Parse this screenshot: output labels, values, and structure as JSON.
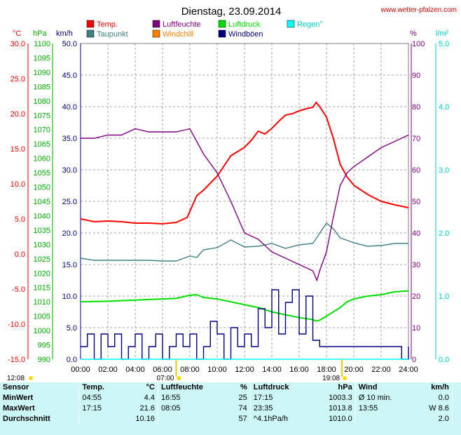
{
  "header": {
    "title": "Dienstag, 23.09.2014",
    "site": "www.wetter-pfalzen.com"
  },
  "units": {
    "c": "°C",
    "hpa": "hPa",
    "kmh": "km/h",
    "pct": "%",
    "lm2": "l/m²"
  },
  "legend": [
    {
      "label": "Temp.",
      "color": "#ff0000"
    },
    {
      "label": "Luftfeuchte",
      "color": "#800080"
    },
    {
      "label": "Luftdruck",
      "color": "#00dd00"
    },
    {
      "label": "Regen°",
      "color": "#00ffff"
    },
    {
      "label": "Taupunkt",
      "color": "#408080"
    },
    {
      "label": "Windchill",
      "color": "#ff8000"
    },
    {
      "label": "Windböen",
      "color": "#000080"
    }
  ],
  "markers": {
    "sunrise": "07:00",
    "sunset": "19:08",
    "left_time": "12:08"
  },
  "chart_data": {
    "type": "line",
    "x_unit": "hour",
    "xlim": [
      0,
      24
    ],
    "x_ticks": [
      "00:00",
      "02:00",
      "04:00",
      "06:00",
      "08:00",
      "10:00",
      "12:00",
      "14:00",
      "16:00",
      "18:00",
      "20:00",
      "22:00",
      "24:00"
    ],
    "axes": {
      "temp_c": {
        "range": [
          -15,
          30
        ],
        "ticks": [
          "30.0",
          "25.0",
          "20.0",
          "15.0",
          "10.0",
          "5.0",
          "0.0",
          "-5.0",
          "-10.0",
          "-15.0"
        ],
        "color": "#ff0000"
      },
      "pressure_hpa": {
        "range": [
          990,
          1100
        ],
        "ticks": [
          "1100",
          "1095",
          "1090",
          "1085",
          "1080",
          "1075",
          "1070",
          "1065",
          "1060",
          "1055",
          "1050",
          "1045",
          "1040",
          "1035",
          "1030",
          "1025",
          "1020",
          "1015",
          "1010",
          "1005",
          "1000",
          "995",
          "990"
        ],
        "color": "#00aa00"
      },
      "wind_kmh": {
        "range": [
          0,
          50
        ],
        "ticks": [
          "50.0",
          "45.0",
          "40.0",
          "35.0",
          "30.0",
          "25.0",
          "20.0",
          "15.0",
          "10.0",
          "5.0",
          "0.0"
        ],
        "color": "#000080"
      },
      "humidity_pct": {
        "range": [
          0,
          100
        ],
        "ticks": [
          "100",
          "90",
          "80",
          "70",
          "60",
          "50",
          "40",
          "30",
          "20",
          "10",
          "0"
        ],
        "color": "#800080"
      },
      "rain_lm2": {
        "range": [
          0,
          5
        ],
        "ticks": [
          "5.0",
          "4.0",
          "3.0",
          "2.0",
          "1.0",
          "0.0"
        ],
        "color": "#00cccc"
      }
    },
    "grid": true,
    "series": [
      {
        "name": "Temp.",
        "axis": "temp_c",
        "color": "#ff0000",
        "x": [
          0,
          1,
          2,
          3,
          4,
          5,
          6,
          7,
          7.8,
          8.5,
          9,
          10,
          11,
          12,
          12.5,
          13,
          13.5,
          14,
          14.5,
          15,
          15.5,
          16,
          16.5,
          17,
          17.25,
          17.5,
          18,
          18.5,
          19,
          19.5,
          20,
          21,
          22,
          23,
          24
        ],
        "values": [
          5.0,
          4.6,
          4.7,
          4.6,
          4.4,
          4.4,
          4.3,
          4.5,
          5.2,
          8.3,
          9.1,
          11.1,
          14.0,
          15.2,
          16.2,
          17.5,
          17.1,
          17.9,
          18.9,
          19.8,
          20.0,
          20.4,
          20.7,
          20.9,
          21.6,
          21.0,
          19.5,
          16.5,
          12.8,
          11.0,
          9.8,
          8.5,
          7.5,
          7.0,
          6.6
        ]
      },
      {
        "name": "Taupunkt",
        "axis": "temp_c",
        "color": "#408080",
        "x": [
          0,
          1,
          2,
          3,
          4,
          5,
          6,
          7,
          8,
          8.5,
          9,
          10,
          11,
          12,
          13,
          14,
          15,
          16,
          17,
          18,
          18.5,
          19,
          20,
          21,
          22,
          23,
          24
        ],
        "values": [
          -0.6,
          -0.9,
          -0.9,
          -0.9,
          -0.9,
          -0.9,
          -1.0,
          -1.0,
          -0.3,
          -0.5,
          0.6,
          0.9,
          2.0,
          1.0,
          1.1,
          1.5,
          0.8,
          1.3,
          1.5,
          4.4,
          3.6,
          2.3,
          1.6,
          1.1,
          1.2,
          1.5,
          1.5
        ]
      },
      {
        "name": "Luftfeuchte",
        "axis": "humidity_pct",
        "color": "#800080",
        "x": [
          0,
          1,
          2,
          3,
          4,
          5,
          6,
          7,
          8,
          8.5,
          9,
          10,
          11,
          12,
          13,
          14,
          15,
          15.5,
          16,
          16.5,
          17,
          17.3,
          17.5,
          18,
          18.5,
          19,
          19.5,
          20,
          21,
          22,
          23,
          24
        ],
        "values": [
          70,
          70,
          71,
          71,
          73,
          72,
          72,
          72,
          73,
          69,
          65,
          59,
          50,
          40,
          38,
          34,
          32,
          31,
          30,
          29,
          28,
          25,
          28,
          34,
          45,
          55,
          59,
          61,
          64,
          67,
          69,
          71
        ]
      },
      {
        "name": "Luftdruck",
        "axis": "pressure_hpa",
        "color": "#00dd00",
        "x": [
          0,
          1,
          2,
          3,
          4,
          5,
          6,
          7,
          8,
          8.5,
          9,
          10,
          11,
          12,
          13,
          14,
          15,
          16,
          17,
          17.25,
          17.5,
          18,
          18.5,
          19,
          19.5,
          20,
          21,
          22,
          23,
          24
        ],
        "values": [
          1010.0,
          1010.1,
          1010.2,
          1010.4,
          1010.6,
          1010.8,
          1011.0,
          1011.2,
          1012.3,
          1012.5,
          1011.5,
          1011.0,
          1010.0,
          1009.0,
          1008.0,
          1006.5,
          1005.5,
          1004.5,
          1003.8,
          1003.3,
          1003.6,
          1005.0,
          1006.5,
          1008.0,
          1010.0,
          1011.0,
          1012.0,
          1012.5,
          1013.5,
          1013.8
        ]
      },
      {
        "name": "Windböen",
        "axis": "wind_kmh",
        "color": "#000080",
        "x": [
          0,
          0.5,
          1,
          1.5,
          2,
          2.5,
          3,
          3.5,
          4,
          4.5,
          5,
          5.5,
          6,
          6.5,
          7,
          7.5,
          8,
          8.5,
          9,
          9.5,
          10,
          10.5,
          11,
          11.5,
          12,
          12.5,
          13,
          13.5,
          14,
          14.5,
          15,
          15.5,
          16,
          16.5,
          17,
          17.5,
          18,
          18.5,
          19,
          19.5,
          20,
          20.5,
          21,
          21.5,
          22,
          22.5,
          23,
          23.5,
          24
        ],
        "values": [
          2,
          4,
          0,
          4,
          2,
          4,
          0,
          2,
          4,
          0,
          2,
          4,
          0,
          2,
          4,
          2,
          4,
          0,
          2,
          6,
          4,
          0,
          5,
          2,
          4,
          2,
          8,
          5,
          11,
          4,
          9,
          11,
          4,
          10,
          3,
          2,
          2,
          2,
          2,
          2,
          2,
          2,
          2,
          2,
          2,
          2,
          2,
          0,
          2
        ]
      },
      {
        "name": "Regen°",
        "axis": "rain_lm2",
        "color": "#00ffff",
        "x": [
          0,
          24
        ],
        "values": [
          0,
          0
        ]
      }
    ]
  },
  "stats": {
    "headers": {
      "sensor": "Sensor",
      "temp": "Temp.",
      "temp_unit": "°C",
      "hum": "Luftfeuchte",
      "hum_unit": "%",
      "press": "Luftdruck",
      "press_unit": "hPa",
      "wind": "Wind",
      "wind_unit": "km/h"
    },
    "rows": [
      {
        "label": "MinWert",
        "t_time": "04:55",
        "t_val": "4.4",
        "h_time": "16:55",
        "h_val": "25",
        "p_time": "17:15",
        "p_val": "1003.3",
        "w_time": "Ø 10 min.",
        "w_val": "0.0"
      },
      {
        "label": "MaxWert",
        "t_time": "17:15",
        "t_val": "21.6",
        "h_time": "08:05",
        "h_val": "74",
        "p_time": "23:35",
        "p_val": "1013.8",
        "w_time": "13:55",
        "w_val": "W 8.6"
      },
      {
        "label": "Durchschnitt",
        "t_time": "",
        "t_val": "10.16",
        "h_time": "",
        "h_val": "57",
        "p_time": "^4.1hPa/h",
        "p_val": "1010.0",
        "w_time": "",
        "w_val": "2.0"
      }
    ]
  }
}
